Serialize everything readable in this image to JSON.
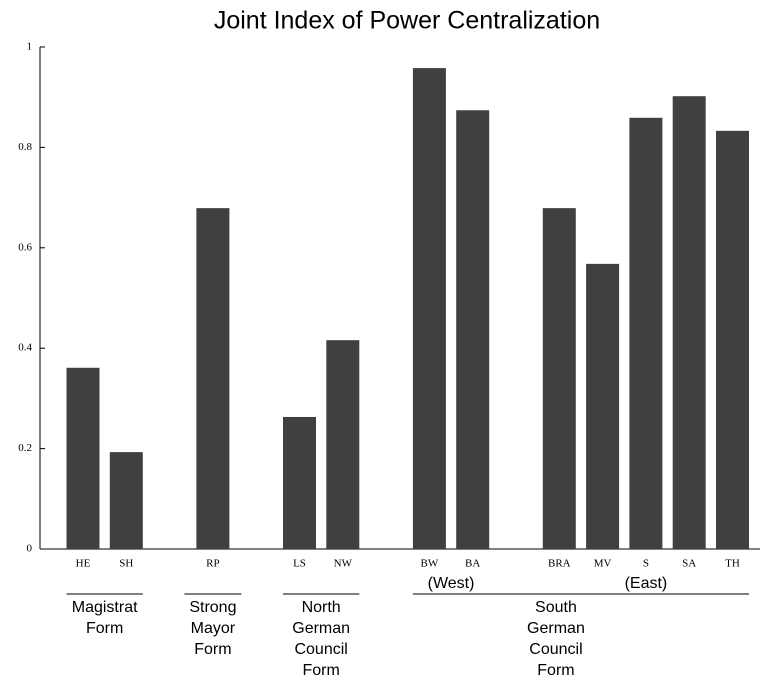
{
  "chart_data": {
    "type": "bar",
    "title": "Joint Index of Power Centralization",
    "categories": [
      "HE",
      "SH",
      null,
      "RP",
      null,
      "LS",
      "NW",
      null,
      "BW",
      "BA",
      null,
      "BRA",
      "MV",
      "S",
      "SA",
      "TH"
    ],
    "values": [
      0.361,
      0.193,
      null,
      0.679,
      null,
      0.263,
      0.416,
      null,
      0.958,
      0.874,
      null,
      0.679,
      0.568,
      0.859,
      0.902,
      0.833
    ],
    "color": "#404040",
    "ylim": [
      0,
      1
    ],
    "yticks": [
      0,
      0.2,
      0.4,
      0.6,
      0.8,
      1
    ],
    "grid": false,
    "subgroup_labels": [
      "(West)",
      "(East)"
    ],
    "group_labels": [
      [
        "Magistrat",
        "Form"
      ],
      [
        "Strong",
        "Mayor",
        "Form"
      ],
      [
        "North",
        "German",
        "Council",
        "Form"
      ],
      [
        "South",
        "German",
        "Council",
        "Form"
      ]
    ]
  }
}
